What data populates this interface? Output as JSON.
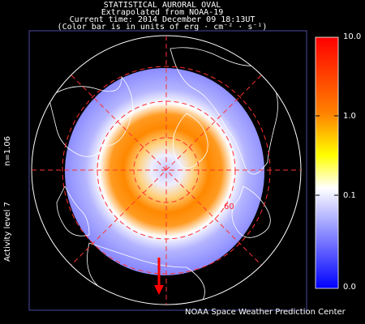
{
  "header": {
    "title": "STATISTICAL AURORAL OVAL",
    "line2": "Extrapolated from NOAA-19",
    "line3": "Current time: 2014 December 09 18:13UT",
    "line4": "(Color bar is in units of erg · cm⁻² · s⁻¹)"
  },
  "colorbar": {
    "labels": [
      "10.0",
      "1.0",
      "0.1",
      "0.0"
    ],
    "colors": [
      "#ff0000",
      "#ff8800",
      "#ffff00",
      "#ffffff",
      "#7f7fff",
      "#0000ff"
    ]
  },
  "side": {
    "n_label": "n=1.06",
    "activity": "Activity level 7"
  },
  "map": {
    "latitude_label": "60",
    "sun_arrow_color": "#ff0000"
  },
  "credit": "NOAA Space Weather Prediction Center"
}
